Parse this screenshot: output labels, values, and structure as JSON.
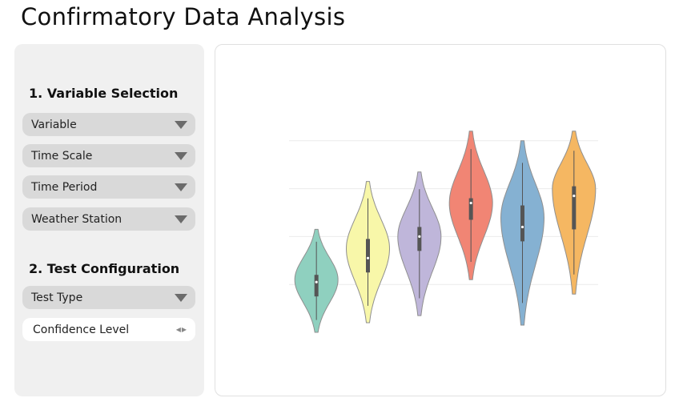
{
  "page": {
    "title": "Confirmatory Data Analysis"
  },
  "sidebar": {
    "section1_title": "1. Variable Selection",
    "section2_title": "2. Test Configuration",
    "dropdowns": [
      {
        "label": "Variable"
      },
      {
        "label": "Time Scale"
      },
      {
        "label": "Time Period"
      },
      {
        "label": "Weather Station"
      }
    ],
    "test_type": {
      "label": "Test Type"
    },
    "confidence": {
      "label": "Confidence Level"
    }
  },
  "chart_data": {
    "type": "violin",
    "title": "",
    "xlabel": "",
    "ylabel": "",
    "ylim": [
      0,
      1
    ],
    "grid": true,
    "gridlines": [
      0.2,
      0.4,
      0.6,
      0.8
    ],
    "series": [
      {
        "color": "#8fd0bf",
        "min": 0.0,
        "max": 0.43,
        "q1": 0.15,
        "median": 0.21,
        "q3": 0.24,
        "peak": 0.22
      },
      {
        "color": "#f8f7a9",
        "min": 0.04,
        "max": 0.63,
        "q1": 0.25,
        "median": 0.31,
        "q3": 0.39,
        "peak": 0.35
      },
      {
        "color": "#bfb6da",
        "min": 0.07,
        "max": 0.67,
        "q1": 0.34,
        "median": 0.4,
        "q3": 0.44,
        "peak": 0.4
      },
      {
        "color": "#f18574",
        "min": 0.22,
        "max": 0.84,
        "q1": 0.47,
        "median": 0.54,
        "q3": 0.56,
        "peak": 0.54
      },
      {
        "color": "#85b1d2",
        "min": 0.03,
        "max": 0.8,
        "q1": 0.38,
        "median": 0.44,
        "q3": 0.53,
        "peak": 0.48
      },
      {
        "color": "#f5b762",
        "min": 0.16,
        "max": 0.84,
        "q1": 0.43,
        "median": 0.57,
        "q3": 0.61,
        "peak": 0.6
      }
    ]
  }
}
